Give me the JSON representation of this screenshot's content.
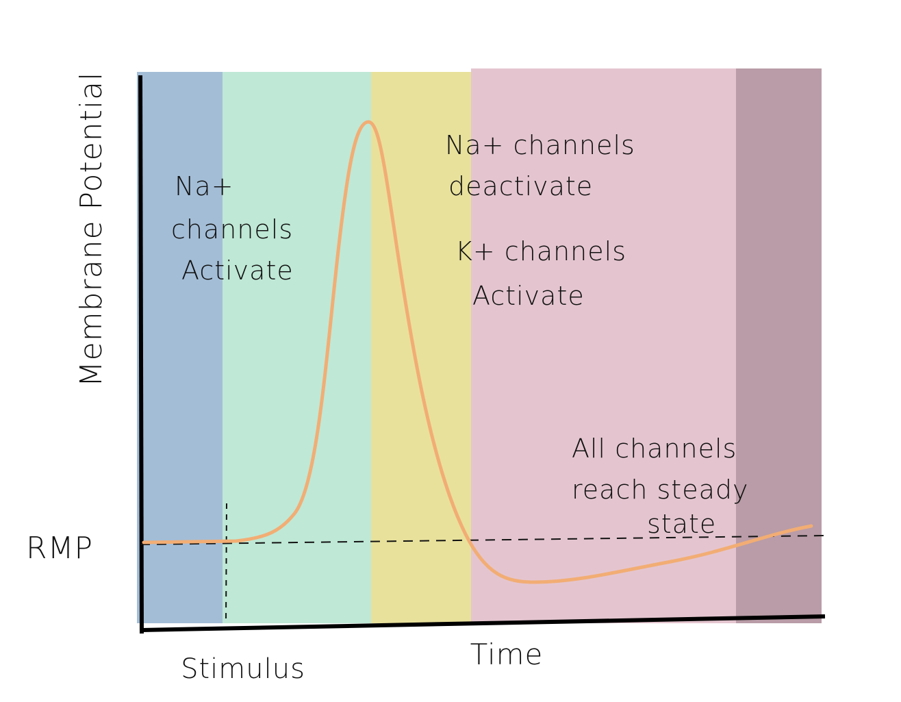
{
  "axes": {
    "y_label": "Membrane Potential",
    "x_label": "Time"
  },
  "markers": {
    "rmp": "RMP",
    "stimulus": "Stimulus"
  },
  "annotations": [
    {
      "lines": [
        "Na+",
        "channels",
        "Activate"
      ]
    },
    {
      "lines": [
        "Na+ channels",
        "deactivate"
      ]
    },
    {
      "lines": [
        "K+ channels",
        "Activate"
      ]
    },
    {
      "lines": [
        "All channels",
        "reach steady",
        "state"
      ]
    }
  ]
}
